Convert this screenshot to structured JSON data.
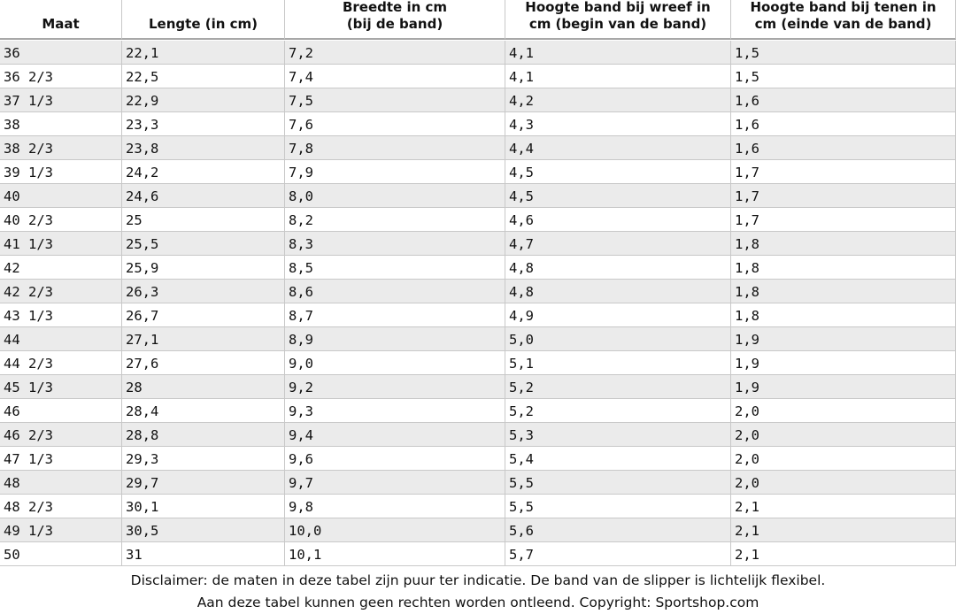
{
  "table": {
    "header": [
      [
        "Maat"
      ],
      [
        "Lengte (in cm)"
      ],
      [
        "Breedte in cm",
        "(bij de band)"
      ],
      [
        "Hoogte band bij wreef in",
        "cm (begin van de band)"
      ],
      [
        "Hoogte band bij tenen in",
        "cm (einde van de band)"
      ]
    ],
    "rows": [
      [
        "36",
        "22,1",
        "7,2",
        "4,1",
        "1,5"
      ],
      [
        "36 2/3",
        "22,5",
        "7,4",
        "4,1",
        "1,5"
      ],
      [
        "37 1/3",
        "22,9",
        "7,5",
        "4,2",
        "1,6"
      ],
      [
        "38",
        "23,3",
        "7,6",
        "4,3",
        "1,6"
      ],
      [
        "38 2/3",
        "23,8",
        "7,8",
        "4,4",
        "1,6"
      ],
      [
        "39 1/3",
        "24,2",
        "7,9",
        "4,5",
        "1,7"
      ],
      [
        "40",
        "24,6",
        "8,0",
        "4,5",
        "1,7"
      ],
      [
        "40 2/3",
        "25",
        "8,2",
        "4,6",
        "1,7"
      ],
      [
        "41 1/3",
        "25,5",
        "8,3",
        "4,7",
        "1,8"
      ],
      [
        "42",
        "25,9",
        "8,5",
        "4,8",
        "1,8"
      ],
      [
        "42 2/3",
        "26,3",
        "8,6",
        "4,8",
        "1,8"
      ],
      [
        "43 1/3",
        "26,7",
        "8,7",
        "4,9",
        "1,8"
      ],
      [
        "44",
        "27,1",
        "8,9",
        "5,0",
        "1,9"
      ],
      [
        "44 2/3",
        "27,6",
        "9,0",
        "5,1",
        "1,9"
      ],
      [
        "45 1/3",
        "28",
        "9,2",
        "5,2",
        "1,9"
      ],
      [
        "46",
        "28,4",
        "9,3",
        "5,2",
        "2,0"
      ],
      [
        "46 2/3",
        "28,8",
        "9,4",
        "5,3",
        "2,0"
      ],
      [
        "47 1/3",
        "29,3",
        "9,6",
        "5,4",
        "2,0"
      ],
      [
        "48",
        "29,7",
        "9,7",
        "5,5",
        "2,0"
      ],
      [
        "48 2/3",
        "30,1",
        "9,8",
        "5,5",
        "2,1"
      ],
      [
        "49 1/3",
        "30,5",
        "10,0",
        "5,6",
        "2,1"
      ],
      [
        "50",
        "31",
        "10,1",
        "5,7",
        "2,1"
      ]
    ]
  },
  "footer": [
    "Disclaimer: de maten in deze tabel zijn puur ter indicatie. De band van de slipper is lichtelijk flexibel.",
    "Aan deze tabel kunnen geen rechten worden ontleend. Copyright: Sportshop.com"
  ]
}
